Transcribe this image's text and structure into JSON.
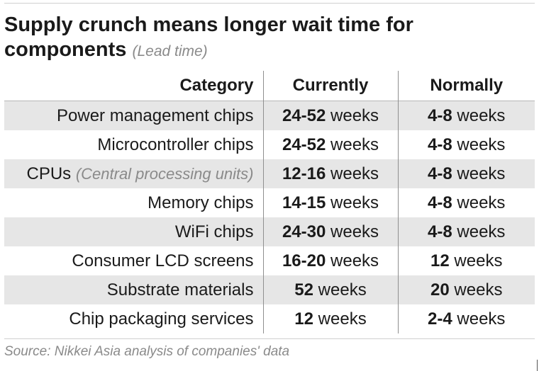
{
  "chart_data": {
    "type": "table",
    "title": "Supply crunch means longer wait time for components",
    "subtitle": "(Lead time)",
    "columns": [
      "Category",
      "Currently",
      "Normally"
    ],
    "unit": "weeks",
    "rows": [
      {
        "category": "Power management chips",
        "note": "",
        "currently": "24-52",
        "normally": "4-8"
      },
      {
        "category": "Microcontroller chips",
        "note": "",
        "currently": "24-52",
        "normally": "4-8"
      },
      {
        "category": "CPUs",
        "note": "(Central processing units)",
        "currently": "12-16",
        "normally": "4-8"
      },
      {
        "category": "Memory chips",
        "note": "",
        "currently": "14-15",
        "normally": "4-8"
      },
      {
        "category": "WiFi chips",
        "note": "",
        "currently": "24-30",
        "normally": "4-8"
      },
      {
        "category": "Consumer LCD screens",
        "note": "",
        "currently": "16-20",
        "normally": "12"
      },
      {
        "category": "Substrate materials",
        "note": "",
        "currently": "52",
        "normally": "20"
      },
      {
        "category": "Chip packaging services",
        "note": "",
        "currently": "12",
        "normally": "2-4"
      }
    ],
    "source": "Source: Nikkei Asia analysis of companies' data"
  },
  "colors": {
    "shade": "#e6e6e6",
    "text": "#1a1a1a",
    "muted": "#8a8a8a"
  }
}
